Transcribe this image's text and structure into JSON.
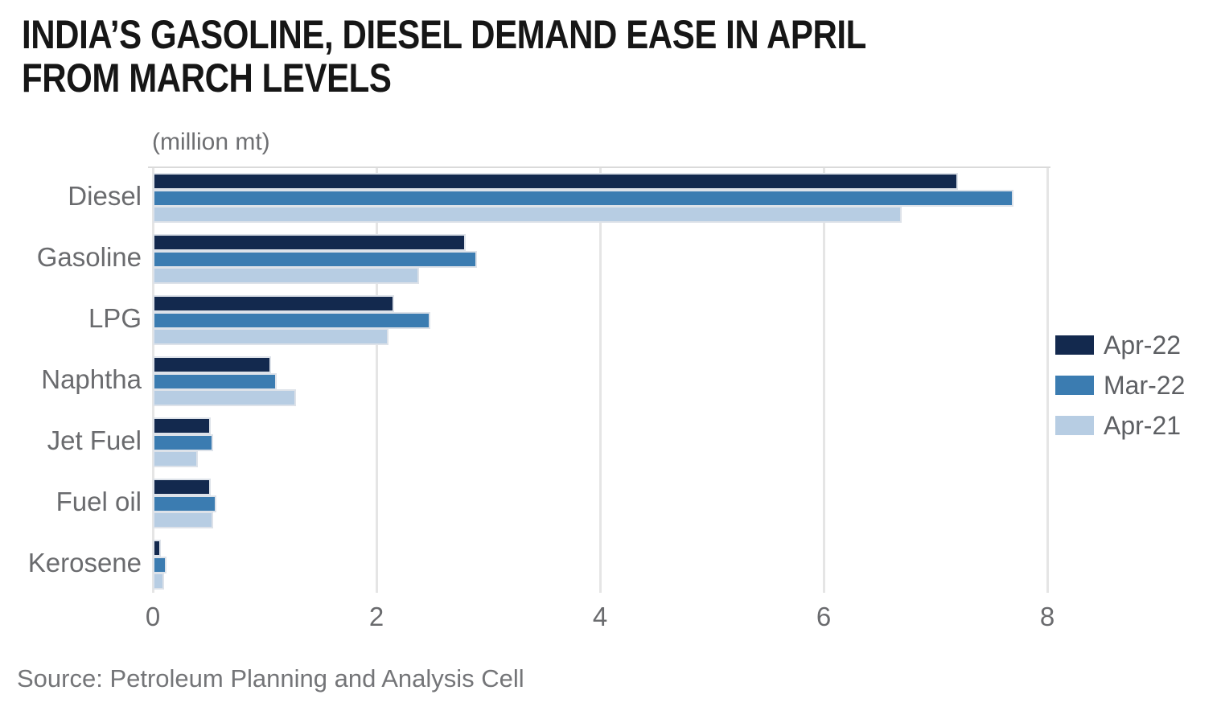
{
  "chart_data": {
    "type": "bar",
    "orientation": "horizontal",
    "title": "INDIA’S GASOLINE, DIESEL DEMAND EASE IN APRIL FROM MARCH LEVELS",
    "title_lines": [
      "INDIA’S GASOLINE, DIESEL DEMAND EASE IN APRIL",
      "FROM MARCH LEVELS"
    ],
    "unit_label": "(million mt)",
    "categories": [
      "Diesel",
      "Gasoline",
      "LPG",
      "Naphtha",
      "Jet Fuel",
      "Fuel oil",
      "Kerosene"
    ],
    "series": [
      {
        "name": "Apr-22",
        "color": "#13294e",
        "values": [
          7.2,
          2.8,
          2.16,
          1.06,
          0.52,
          0.52,
          0.07
        ]
      },
      {
        "name": "Mar-22",
        "color": "#3b7cb1",
        "values": [
          7.7,
          2.9,
          2.48,
          1.11,
          0.54,
          0.57,
          0.12
        ]
      },
      {
        "name": "Apr-21",
        "color": "#b7cde3",
        "values": [
          6.7,
          2.38,
          2.11,
          1.28,
          0.4,
          0.54,
          0.1
        ]
      }
    ],
    "x_axis": {
      "min": 0,
      "max": 8,
      "ticks": [
        0,
        2,
        4,
        6,
        8
      ]
    },
    "grid": "vertical",
    "legend_position": "right",
    "source": "Source: Petroleum Planning and Analysis Cell"
  }
}
